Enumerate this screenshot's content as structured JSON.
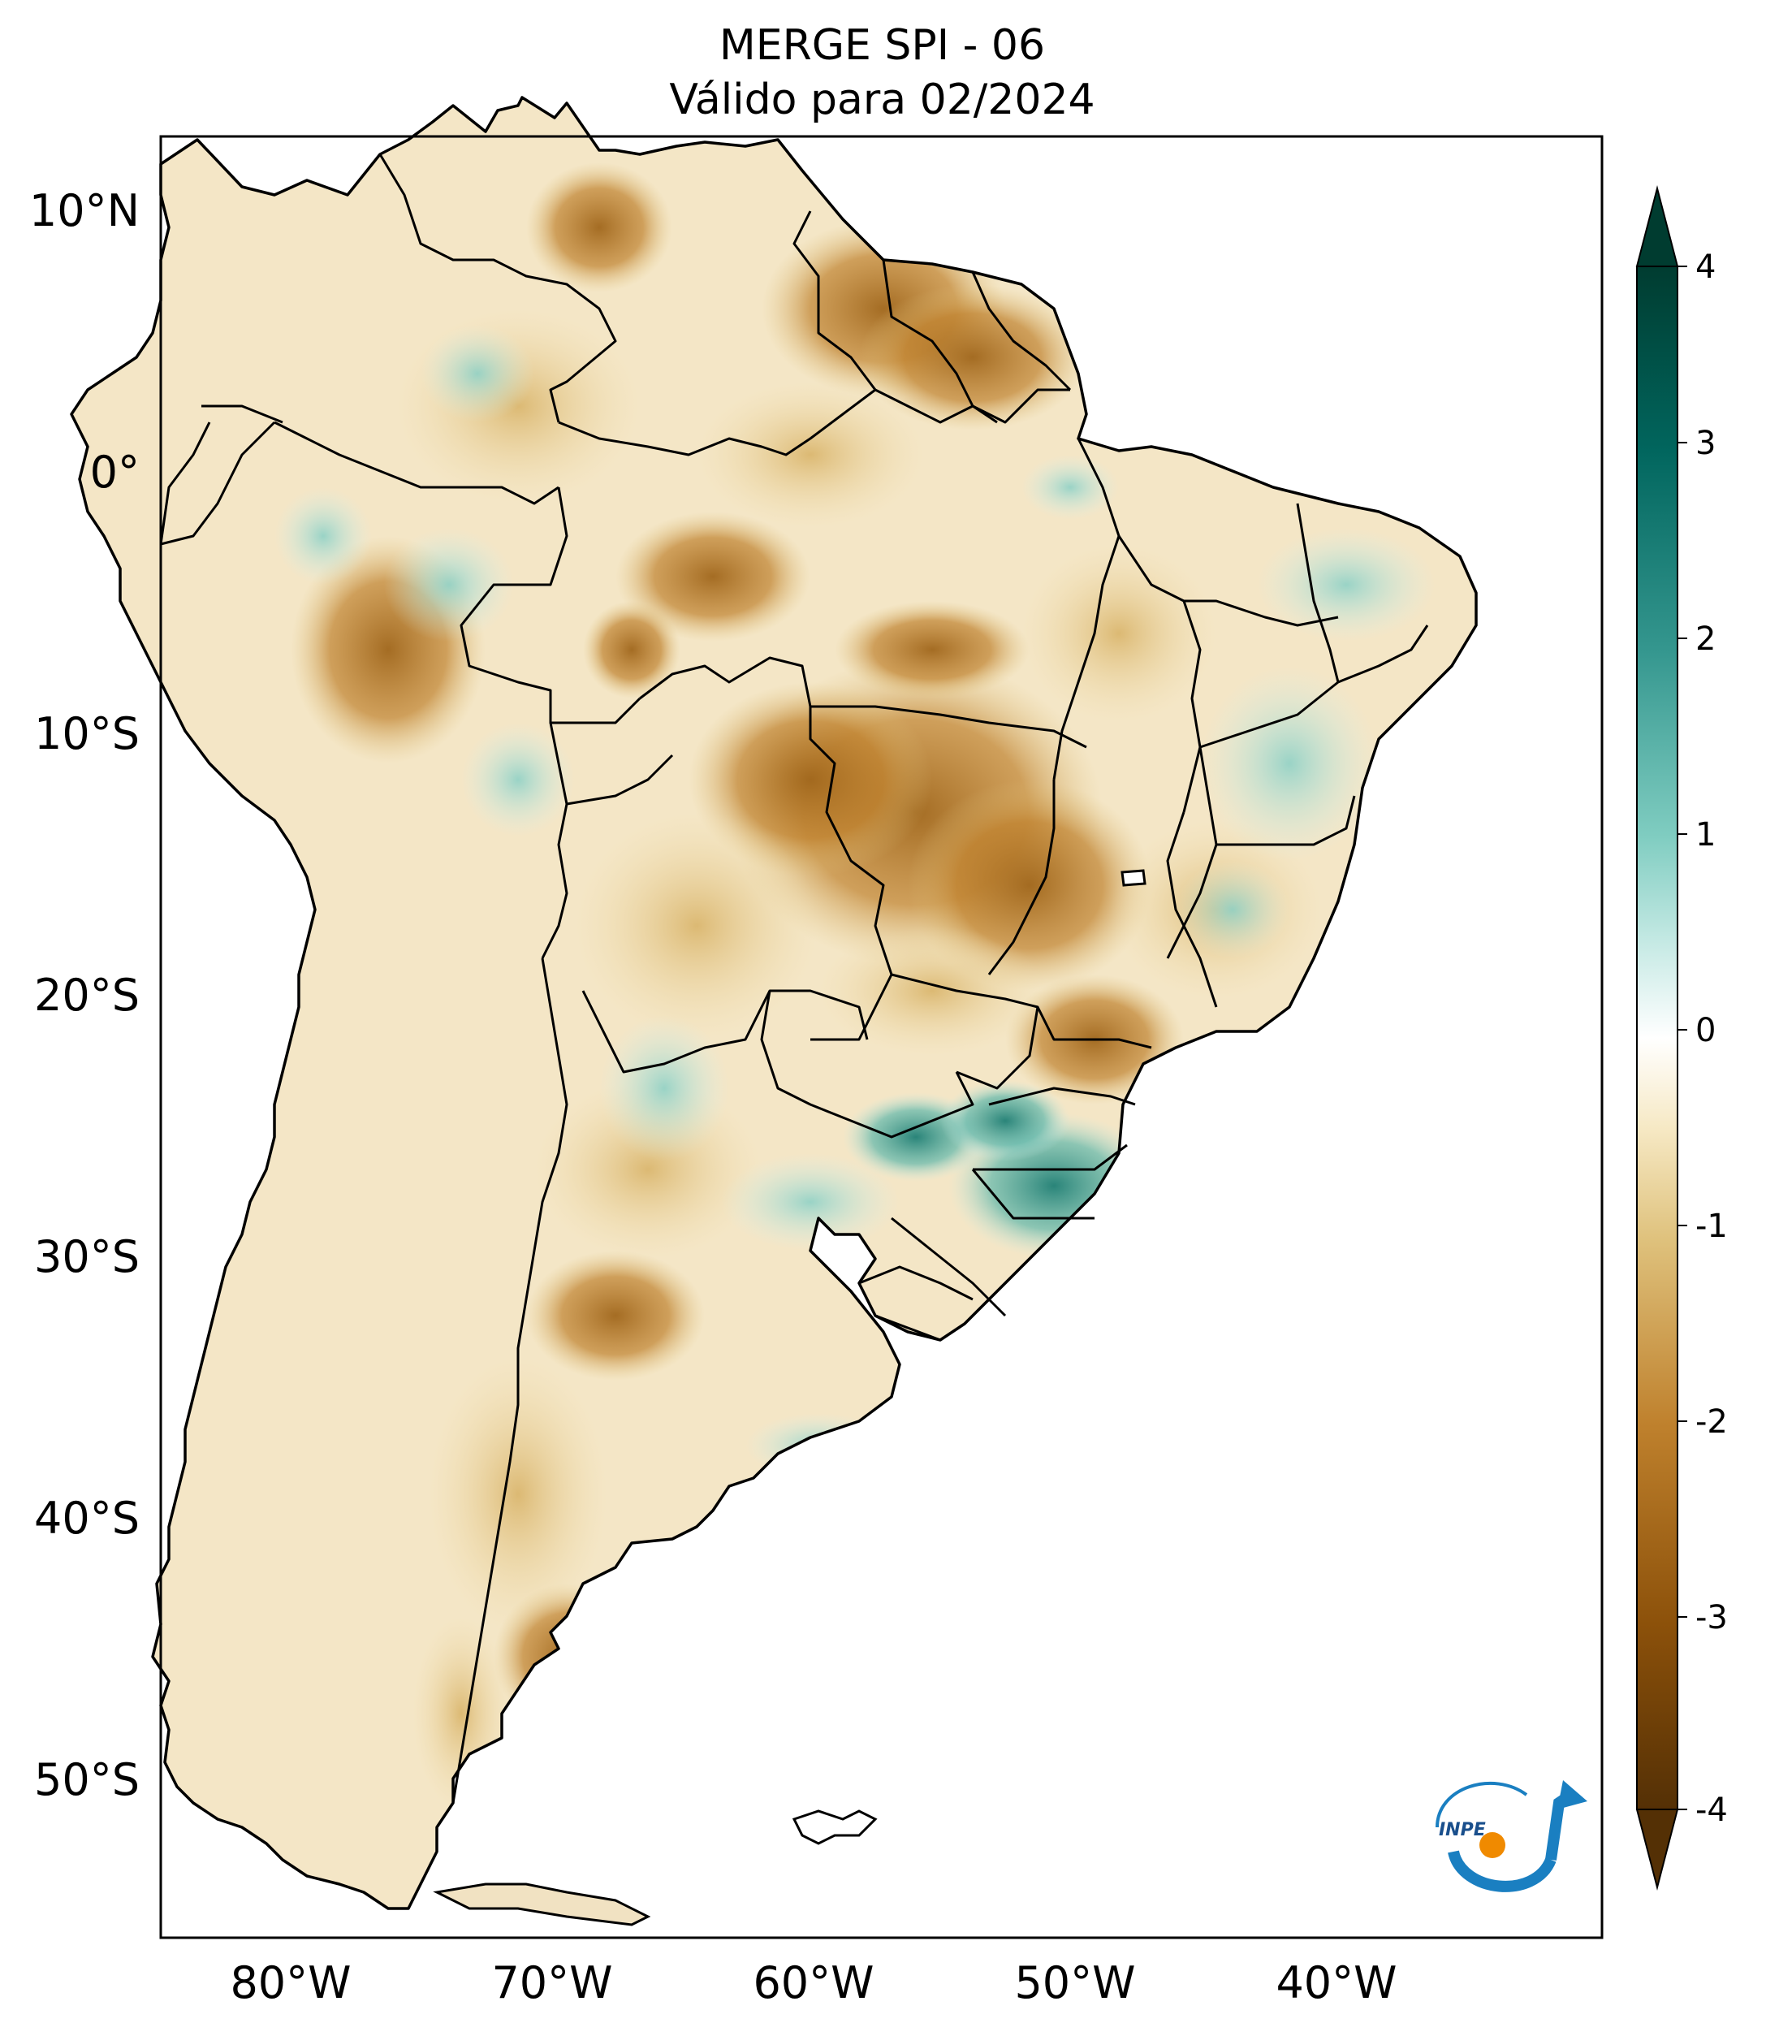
{
  "title": {
    "line1": "MERGE   SPI - 06",
    "line2": "Válido para 02/2024"
  },
  "map": {
    "region": "South America",
    "lat_labels": [
      "10°N",
      "0°",
      "10°S",
      "20°S",
      "30°S",
      "40°S",
      "50°S"
    ],
    "lon_labels": [
      "80°W",
      "70°W",
      "60°W",
      "50°W",
      "40°W"
    ],
    "lat_values": [
      10,
      0,
      -10,
      -20,
      -30,
      -40,
      -50
    ],
    "lon_values": [
      -80,
      -70,
      -60,
      -50,
      -40
    ],
    "extent": {
      "lon_min": -85,
      "lon_max": -29.5,
      "lat_min": -56,
      "lat_max": 13
    }
  },
  "colorbar": {
    "ticks": [
      "4",
      "3",
      "2",
      "1",
      "0",
      "-1",
      "-2",
      "-3",
      "-4"
    ],
    "tick_values": [
      4,
      3,
      2,
      1,
      0,
      -1,
      -2,
      -3,
      -4
    ],
    "colors": {
      "dry_extreme": "#543005",
      "dry_strong": "#8c510a",
      "dry_moderate": "#bf812d",
      "dry_mild": "#dfc27d",
      "dry_light": "#f6e8c3",
      "neutral": "#ffffff",
      "wet_light": "#c7eae5",
      "wet_mild": "#80cdc1",
      "wet_moderate": "#35978f",
      "wet_strong": "#01665e",
      "wet_extreme": "#003c30"
    }
  },
  "logo": {
    "text": "INPE"
  }
}
